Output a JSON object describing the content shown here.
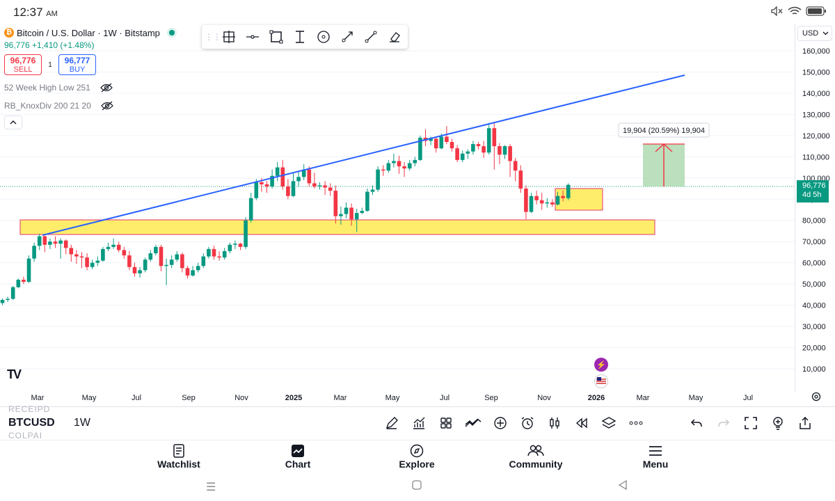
{
  "status_bar": {
    "time": "12:37",
    "ampm": "AM",
    "battery_icon": "battery-icon",
    "wifi_icon": "wifi-icon",
    "mute_icon": "mute-icon"
  },
  "legend": {
    "symbol_title": "Bitcoin / U.S. Dollar · 1W · Bitstamp",
    "change_line": "96,776  +1,410 (+1.48%)",
    "sell_price": "96,776",
    "sell_label": "SELL",
    "spread": "1",
    "buy_price": "96,777",
    "buy_label": "BUY",
    "indicators": [
      "52 Week High Low 251",
      "RB_KnoxDiv 200 21 20"
    ]
  },
  "currency_selector": "USD",
  "measure_label": "19,904 (20.59%) 19,904",
  "last_price_tag": {
    "price": "96,776",
    "countdown": "4d 5h"
  },
  "price_axis": [
    "160,000",
    "150,000",
    "140,000",
    "130,000",
    "120,000",
    "110,000",
    "100,000",
    "90,000",
    "80,000",
    "70,000",
    "60,000",
    "50,000",
    "40,000",
    "30,000",
    "20,000",
    "10,000"
  ],
  "time_axis": [
    {
      "label": "Mar",
      "bold": false
    },
    {
      "label": "May",
      "bold": false
    },
    {
      "label": "Jul",
      "bold": false
    },
    {
      "label": "Sep",
      "bold": false
    },
    {
      "label": "Nov",
      "bold": false
    },
    {
      "label": "2025",
      "bold": true
    },
    {
      "label": "Mar",
      "bold": false
    },
    {
      "label": "May",
      "bold": false
    },
    {
      "label": "Jul",
      "bold": false
    },
    {
      "label": "Sep",
      "bold": false
    },
    {
      "label": "Nov",
      "bold": false
    },
    {
      "label": "2026",
      "bold": true
    },
    {
      "label": "Mar",
      "bold": false
    },
    {
      "label": "May",
      "bold": false
    },
    {
      "label": "Jul",
      "bold": false
    }
  ],
  "bottom_toolbar": {
    "ghost_top": "RECEIPD",
    "symbol": "BTCUSD",
    "timeframe": "1W",
    "ghost_bottom": "COLPAI"
  },
  "nav": [
    "Watchlist",
    "Chart",
    "Explore",
    "Community",
    "Menu"
  ],
  "colors": {
    "up": "#089981",
    "down": "#f23645",
    "trendline": "#2962ff",
    "zone_fill": "#fdeb5a",
    "zone_border": "#e8557b",
    "measure_fill": "#a5d6a7",
    "measure_line": "#f23645"
  },
  "chart_data": {
    "type": "candlestick",
    "symbol": "Bitcoin / U.S. Dollar",
    "interval": "1W",
    "ylim": [
      0,
      165000
    ],
    "candles": [
      [
        41000,
        42500,
        40000,
        43200
      ],
      [
        42500,
        43000,
        41500,
        44000
      ],
      [
        43000,
        48500,
        42500,
        49000
      ],
      [
        48500,
        52000,
        48000,
        52500
      ],
      [
        52000,
        51000,
        50000,
        53500
      ],
      [
        51000,
        62000,
        50500,
        63500
      ],
      [
        62000,
        68000,
        60500,
        69500
      ],
      [
        68000,
        72500,
        66000,
        73700
      ],
      [
        72500,
        68500,
        65000,
        73000
      ],
      [
        68500,
        70000,
        66500,
        71500
      ],
      [
        70000,
        69000,
        67000,
        72500
      ],
      [
        69000,
        70500,
        62000,
        71500
      ],
      [
        70500,
        67000,
        64000,
        71000
      ],
      [
        67000,
        64000,
        60500,
        68500
      ],
      [
        64000,
        63000,
        59500,
        66000
      ],
      [
        63000,
        62500,
        57500,
        65000
      ],
      [
        62500,
        58000,
        56500,
        64500
      ],
      [
        58000,
        60000,
        57000,
        61500
      ],
      [
        60000,
        61000,
        58500,
        63000
      ],
      [
        61000,
        66500,
        60500,
        67500
      ],
      [
        66500,
        67500,
        65500,
        69500
      ],
      [
        67500,
        68500,
        66500,
        71500
      ],
      [
        68500,
        66000,
        65000,
        70000
      ],
      [
        66000,
        63500,
        62000,
        67500
      ],
      [
        63500,
        58000,
        56500,
        65500
      ],
      [
        58000,
        55000,
        53500,
        60000
      ],
      [
        55000,
        56500,
        53000,
        58000
      ],
      [
        56500,
        61500,
        55500,
        62500
      ],
      [
        61500,
        64500,
        60500,
        66000
      ],
      [
        64500,
        67500,
        63500,
        68500
      ],
      [
        67500,
        58500,
        56000,
        68500
      ],
      [
        58500,
        59000,
        49500,
        62000
      ],
      [
        59000,
        61500,
        57500,
        63500
      ],
      [
        61500,
        64000,
        60500,
        65500
      ],
      [
        64000,
        57500,
        55500,
        64800
      ],
      [
        57500,
        54000,
        52500,
        58500
      ],
      [
        54000,
        56500,
        53500,
        58500
      ],
      [
        56500,
        58500,
        55500,
        60000
      ],
      [
        58500,
        63000,
        57500,
        64500
      ],
      [
        63000,
        66500,
        62000,
        67500
      ],
      [
        66500,
        63000,
        61500,
        68000
      ],
      [
        63000,
        62500,
        61000,
        65500
      ],
      [
        62500,
        65500,
        61500,
        67000
      ],
      [
        65500,
        68500,
        64500,
        69500
      ],
      [
        68500,
        69000,
        66500,
        70500
      ],
      [
        69000,
        67500,
        66000,
        69500
      ],
      [
        67500,
        80000,
        66500,
        81500
      ],
      [
        80000,
        90500,
        79000,
        93000
      ],
      [
        90500,
        98000,
        89500,
        99500
      ],
      [
        98000,
        97000,
        93500,
        100000
      ],
      [
        97000,
        96000,
        93000,
        98500
      ],
      [
        96000,
        101000,
        95000,
        104000
      ],
      [
        101000,
        105000,
        98500,
        107500
      ],
      [
        105000,
        96000,
        94500,
        108500
      ],
      [
        96000,
        91500,
        90000,
        99500
      ],
      [
        91500,
        98500,
        91000,
        102500
      ],
      [
        98500,
        100500,
        96000,
        103500
      ],
      [
        100500,
        104000,
        99000,
        106500
      ],
      [
        104000,
        97500,
        96000,
        105500
      ],
      [
        97500,
        96000,
        95000,
        102500
      ],
      [
        96000,
        96500,
        94500,
        98000
      ],
      [
        96500,
        95500,
        92000,
        98500
      ],
      [
        95500,
        94000,
        91500,
        97500
      ],
      [
        94000,
        82000,
        78500,
        96500
      ],
      [
        82000,
        83000,
        78000,
        86500
      ],
      [
        83000,
        86000,
        81000,
        88500
      ],
      [
        86000,
        80500,
        77500,
        88000
      ],
      [
        80500,
        83500,
        74500,
        85500
      ],
      [
        83500,
        84500,
        83000,
        86000
      ],
      [
        84500,
        93500,
        84000,
        95000
      ],
      [
        93500,
        94500,
        92000,
        96500
      ],
      [
        94500,
        104000,
        93500,
        105500
      ],
      [
        104000,
        103500,
        101000,
        106000
      ],
      [
        103500,
        107000,
        102500,
        108500
      ],
      [
        107000,
        108000,
        105000,
        111500
      ],
      [
        108000,
        105500,
        102000,
        110500
      ],
      [
        105500,
        104500,
        100500,
        107500
      ],
      [
        104500,
        107000,
        103500,
        108500
      ],
      [
        107000,
        108500,
        105500,
        110000
      ],
      [
        108500,
        119000,
        108000,
        120000
      ],
      [
        119000,
        117500,
        115000,
        123000
      ],
      [
        117500,
        118500,
        115500,
        119500
      ],
      [
        118500,
        114000,
        112000,
        119000
      ],
      [
        114000,
        119500,
        113500,
        121000
      ],
      [
        119500,
        117000,
        116000,
        124500
      ],
      [
        117000,
        114000,
        112500,
        118500
      ],
      [
        114000,
        108500,
        107500,
        115500
      ],
      [
        108500,
        111500,
        107500,
        113000
      ],
      [
        111500,
        112500,
        109000,
        113500
      ],
      [
        112500,
        116000,
        111000,
        117500
      ],
      [
        116000,
        115000,
        113500,
        117000
      ],
      [
        115000,
        112000,
        109500,
        117500
      ],
      [
        112000,
        123500,
        111000,
        126000
      ],
      [
        123500,
        115000,
        104000,
        126000
      ],
      [
        115000,
        111000,
        106500,
        116500
      ],
      [
        111000,
        115000,
        109000,
        115500
      ],
      [
        115000,
        108000,
        100500,
        116000
      ],
      [
        108000,
        103500,
        98500,
        109500
      ],
      [
        103500,
        95000,
        93000,
        106000
      ],
      [
        95000,
        84000,
        80500,
        96500
      ],
      [
        84000,
        91500,
        83500,
        93000
      ],
      [
        91500,
        89500,
        87500,
        94000
      ],
      [
        89500,
        88000,
        85000,
        93000
      ],
      [
        88000,
        88500,
        86000,
        90500
      ],
      [
        88500,
        87500,
        86500,
        90000
      ],
      [
        87500,
        91500,
        87000,
        93500
      ],
      [
        91500,
        90500,
        89000,
        94000
      ],
      [
        90500,
        96776,
        89500,
        97500
      ]
    ]
  }
}
